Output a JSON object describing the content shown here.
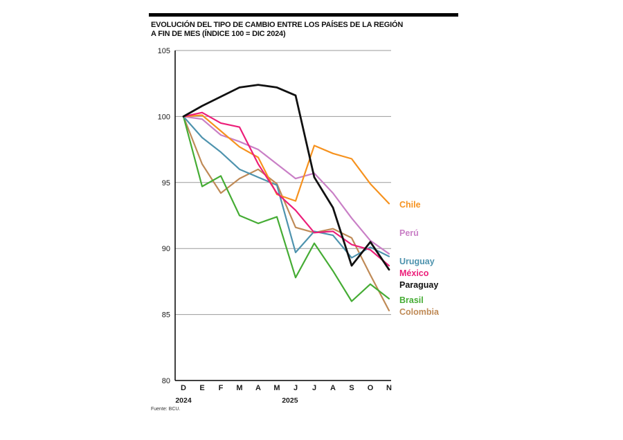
{
  "chart_data": {
    "type": "line",
    "title": "EVOLUCIÓN DEL TIPO DE CAMBIO ENTRE LOS PAÍSES DE LA REGIÓN",
    "subtitle": "A FIN DE MES (ÍNDICE 100 = DIC 2024)",
    "source": "Fuente: BCU.",
    "categories": [
      "D",
      "E",
      "F",
      "M",
      "A",
      "M",
      "J",
      "J",
      "A",
      "S",
      "O",
      "N"
    ],
    "year_labels": [
      {
        "label": "2024",
        "index": 0
      },
      {
        "label": "2025",
        "index": 5.7
      }
    ],
    "ylim": [
      80,
      105
    ],
    "yticks": [
      80,
      85,
      90,
      95,
      100,
      105
    ],
    "grid": true,
    "legend_position": "right",
    "series": [
      {
        "name": "Chile",
        "color": "#F6921E",
        "z": 4,
        "values": [
          100,
          100.1,
          98.9,
          97.7,
          96.9,
          94.1,
          93.6,
          97.8,
          97.2,
          96.8,
          94.9,
          93.4
        ]
      },
      {
        "name": "Perú",
        "color": "#C97FC6",
        "z": 3,
        "values": [
          100,
          99.8,
          98.6,
          98.1,
          97.5,
          96.4,
          95.3,
          95.7,
          94.2,
          92.3,
          90.6,
          89.6
        ]
      },
      {
        "name": "Uruguay",
        "color": "#4E93AE",
        "z": 2,
        "values": [
          100,
          98.4,
          97.3,
          96.0,
          95.4,
          94.8,
          89.7,
          91.3,
          91.0,
          89.3,
          90.1,
          89.4
        ]
      },
      {
        "name": "México",
        "color": "#EC1E79",
        "z": 5,
        "values": [
          100,
          100.3,
          99.5,
          99.2,
          96.4,
          94.2,
          92.9,
          91.2,
          91.3,
          90.3,
          89.9,
          88.7
        ]
      },
      {
        "name": "Paraguay",
        "color": "#111111",
        "z": 6,
        "values": [
          100,
          100.8,
          101.5,
          102.2,
          102.4,
          102.2,
          101.6,
          95.4,
          93.1,
          88.7,
          90.5,
          88.4
        ]
      },
      {
        "name": "Brasil",
        "color": "#45AC34",
        "z": 1,
        "values": [
          100,
          94.7,
          95.5,
          92.5,
          91.9,
          92.4,
          87.8,
          90.4,
          88.3,
          86.0,
          87.3,
          86.2
        ]
      },
      {
        "name": "Colombia",
        "color": "#BF8A56",
        "z": 0,
        "values": [
          100,
          96.4,
          94.2,
          95.3,
          96.0,
          94.9,
          91.6,
          91.2,
          91.5,
          90.8,
          88.0,
          85.3
        ]
      }
    ]
  }
}
